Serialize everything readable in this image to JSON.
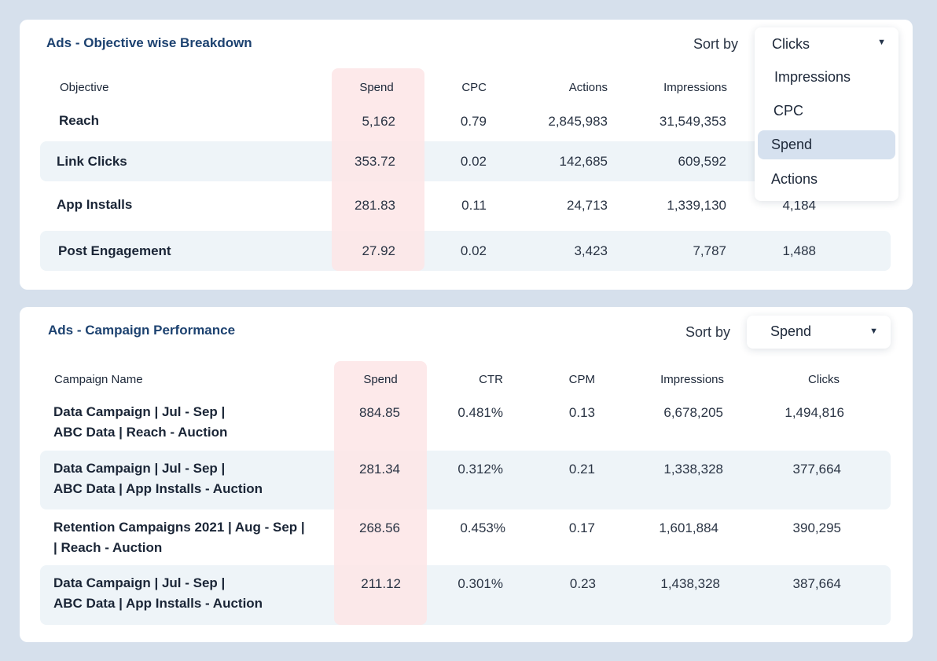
{
  "objective_card": {
    "title": "Ads - Objective wise Breakdown",
    "sort_label": "Sort by",
    "sort_value": "Clicks",
    "sort_options": [
      "Impressions",
      "CPC",
      "Spend",
      "Actions"
    ],
    "sort_selected_option": "Spend",
    "columns": [
      "Objective",
      "Spend",
      "CPC",
      "Actions",
      "Impressions"
    ],
    "rows": [
      {
        "objective": "Reach",
        "spend": "5,162",
        "cpc": "0.79",
        "actions": "2,845,983",
        "impressions": "31,549,353",
        "clicks": ""
      },
      {
        "objective": "Link Clicks",
        "spend": "353.72",
        "cpc": "0.02",
        "actions": "142,685",
        "impressions": "609,592",
        "clicks": ""
      },
      {
        "objective": "App Installs",
        "spend": "281.83",
        "cpc": "0.11",
        "actions": "24,713",
        "impressions": "1,339,130",
        "clicks": "4,184"
      },
      {
        "objective": "Post Engagement",
        "spend": "27.92",
        "cpc": "0.02",
        "actions": "3,423",
        "impressions": "7,787",
        "clicks": "1,488"
      }
    ]
  },
  "campaign_card": {
    "title": "Ads - Campaign Performance",
    "sort_label": "Sort by",
    "sort_value": "Spend",
    "columns": [
      "Campaign Name",
      "Spend",
      "CTR",
      "CPM",
      "Impressions",
      "Clicks"
    ],
    "rows": [
      {
        "name_line1": "Data Campaign | Jul - Sep |",
        "name_line2": "ABC Data | Reach - Auction",
        "spend": "884.85",
        "ctr": "0.481%",
        "cpm": "0.13",
        "impressions": "6,678,205",
        "clicks": "1,494,816"
      },
      {
        "name_line1": "Data Campaign | Jul - Sep |",
        "name_line2": "ABC Data | App Installs - Auction",
        "spend": "281.34",
        "ctr": "0.312%",
        "cpm": "0.21",
        "impressions": "1,338,328",
        "clicks": "377,664"
      },
      {
        "name_line1": "Retention Campaigns 2021 | Aug - Sep |",
        "name_line2": "| Reach - Auction",
        "spend": "268.56",
        "ctr": "0.453%",
        "cpm": "0.17",
        "impressions": "1,601,884",
        "clicks": "390,295"
      },
      {
        "name_line1": "Data Campaign | Jul - Sep |",
        "name_line2": "ABC Data | App Installs - Auction",
        "spend": "211.12",
        "ctr": "0.301%",
        "cpm": "0.23",
        "impressions": "1,438,328",
        "clicks": "387,664"
      }
    ]
  },
  "colors": {
    "background": "#d6e0ec",
    "title": "#1d4270",
    "spend_highlight": "#fde5e6",
    "row_band": "#eef4f8",
    "selected_option": "#d6e1ef"
  },
  "icons": {
    "dropdown_caret": "caret-down-icon"
  }
}
